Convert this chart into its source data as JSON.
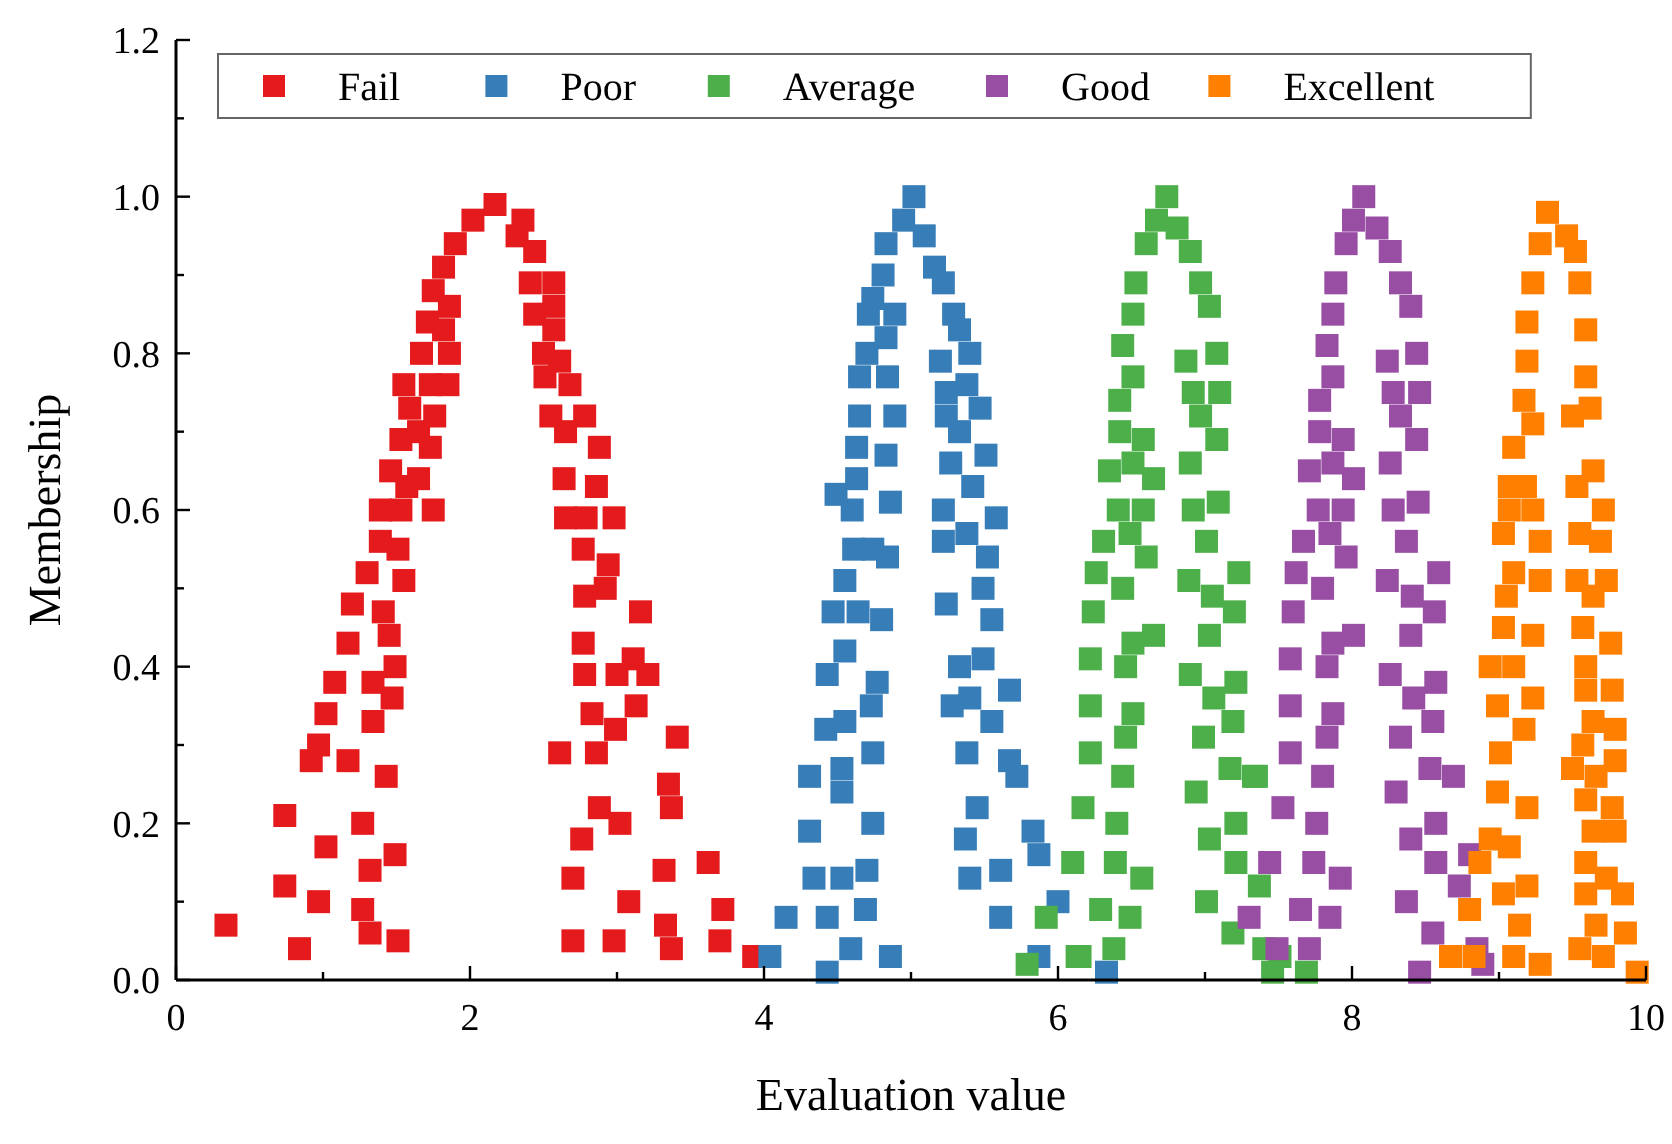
{
  "chart_data": {
    "type": "scatter",
    "xlabel": "Evaluation value",
    "ylabel": "Membership",
    "xlim": [
      0,
      10
    ],
    "ylim": [
      0,
      1.2
    ],
    "xticks": [
      0,
      {
        "value": 1,
        "label": null
      },
      2,
      {
        "value": 3,
        "label": null
      },
      4,
      {
        "value": 5,
        "label": null
      },
      6,
      {
        "value": 7,
        "label": null
      },
      8,
      {
        "value": 9,
        "label": null
      },
      10
    ],
    "yticks": [
      {
        "value": 0,
        "label": "0.0"
      },
      {
        "value": 0.1,
        "label": null
      },
      {
        "value": 0.2,
        "label": "0.2"
      },
      {
        "value": 0.3,
        "label": null
      },
      {
        "value": 0.4,
        "label": "0.4"
      },
      {
        "value": 0.5,
        "label": null
      },
      {
        "value": 0.6,
        "label": "0.6"
      },
      {
        "value": 0.7,
        "label": null
      },
      {
        "value": 0.8,
        "label": "0.8"
      },
      {
        "value": 0.9,
        "label": null
      },
      {
        "value": 1,
        "label": "1.0"
      },
      {
        "value": 1.1,
        "label": null
      },
      {
        "value": 1.2,
        "label": "1.2"
      }
    ],
    "marker": "square",
    "legend": "top",
    "grid": false,
    "series": [
      {
        "name": "Fail",
        "color": "#e41a1c",
        "x": [
          0.34,
          0.84,
          0.74,
          0.74,
          0.97,
          1.02,
          0.92,
          0.97,
          1.02,
          1.08,
          1.17,
          1.2,
          1.3,
          1.17,
          1.27,
          1.32,
          1.27,
          1.32,
          1.51,
          1.49,
          1.43,
          1.34,
          1.47,
          1.34,
          1.49,
          1.45,
          1.41,
          1.55,
          1.51,
          1.39,
          1.39,
          1.53,
          1.46,
          1.57,
          1.65,
          1.53,
          1.59,
          1.65,
          1.73,
          1.75,
          1.76,
          1.55,
          1.73,
          1.85,
          1.67,
          1.86,
          1.71,
          1.82,
          1.75,
          1.86,
          1.82,
          1.9,
          2.02,
          2.17,
          2.36,
          2.32,
          2.44,
          2.41,
          2.57,
          2.44,
          2.57,
          2.57,
          2.5,
          2.61,
          2.51,
          2.68,
          2.55,
          2.78,
          2.65,
          2.88,
          2.64,
          2.86,
          2.65,
          2.79,
          2.98,
          2.77,
          2.94,
          2.92,
          2.78,
          3.16,
          2.77,
          3.11,
          3.0,
          3.21,
          2.78,
          3.13,
          2.83,
          2.99,
          3.41,
          2.61,
          2.86,
          3.35,
          3.37,
          2.88,
          3.02,
          2.76,
          3.62,
          3.32,
          2.7,
          3.08,
          3.72,
          3.33,
          2.7,
          2.98,
          3.37,
          3.7,
          3.93
        ],
        "values": [
          0.07,
          0.04,
          0.21,
          0.12,
          0.1,
          0.17,
          0.28,
          0.3,
          0.34,
          0.38,
          0.43,
          0.48,
          0.52,
          0.28,
          0.2,
          0.14,
          0.09,
          0.06,
          0.05,
          0.16,
          0.26,
          0.33,
          0.36,
          0.38,
          0.4,
          0.44,
          0.47,
          0.51,
          0.55,
          0.56,
          0.6,
          0.6,
          0.65,
          0.63,
          0.64,
          0.69,
          0.73,
          0.7,
          0.68,
          0.6,
          0.72,
          0.76,
          0.76,
          0.76,
          0.8,
          0.8,
          0.84,
          0.83,
          0.88,
          0.86,
          0.91,
          0.94,
          0.97,
          0.99,
          0.97,
          0.95,
          0.93,
          0.89,
          0.89,
          0.85,
          0.86,
          0.83,
          0.8,
          0.79,
          0.77,
          0.76,
          0.72,
          0.72,
          0.7,
          0.68,
          0.64,
          0.63,
          0.59,
          0.59,
          0.59,
          0.55,
          0.53,
          0.5,
          0.49,
          0.47,
          0.43,
          0.41,
          0.39,
          0.39,
          0.39,
          0.35,
          0.34,
          0.32,
          0.31,
          0.29,
          0.29,
          0.25,
          0.22,
          0.22,
          0.2,
          0.18,
          0.15,
          0.14,
          0.13,
          0.1,
          0.09,
          0.07,
          0.05,
          0.05,
          0.04,
          0.05,
          0.03
        ]
      },
      {
        "name": "Poor",
        "color": "#377eb8",
        "x": [
          4.04,
          4.15,
          4.43,
          4.43,
          4.59,
          4.86,
          4.69,
          4.34,
          4.53,
          4.7,
          4.31,
          4.74,
          4.31,
          4.53,
          4.53,
          4.74,
          4.42,
          4.55,
          4.73,
          4.77,
          4.43,
          4.55,
          4.47,
          4.64,
          4.8,
          4.55,
          4.61,
          4.74,
          4.84,
          4.6,
          4.49,
          4.86,
          4.63,
          4.83,
          4.63,
          4.65,
          4.89,
          4.65,
          4.84,
          4.7,
          4.83,
          4.71,
          4.89,
          4.74,
          4.81,
          4.83,
          4.95,
          5.02,
          5.09,
          5.16,
          5.22,
          5.29,
          5.33,
          5.4,
          5.2,
          5.38,
          5.24,
          5.47,
          5.24,
          5.33,
          5.27,
          5.51,
          5.42,
          5.22,
          5.58,
          5.38,
          5.22,
          5.52,
          5.49,
          5.24,
          5.55,
          5.33,
          5.49,
          5.67,
          5.4,
          5.28,
          5.55,
          5.38,
          5.67,
          5.72,
          5.45,
          5.83,
          5.37,
          5.87,
          5.61,
          5.4,
          6.0,
          5.61,
          5.87,
          6.33
        ],
        "values": [
          0.03,
          0.08,
          0.01,
          0.08,
          0.04,
          0.03,
          0.09,
          0.13,
          0.13,
          0.14,
          0.19,
          0.2,
          0.26,
          0.24,
          0.27,
          0.29,
          0.32,
          0.33,
          0.35,
          0.38,
          0.39,
          0.42,
          0.47,
          0.47,
          0.46,
          0.51,
          0.55,
          0.55,
          0.54,
          0.6,
          0.62,
          0.61,
          0.64,
          0.67,
          0.68,
          0.72,
          0.72,
          0.77,
          0.77,
          0.8,
          0.82,
          0.85,
          0.85,
          0.87,
          0.9,
          0.94,
          0.97,
          1.0,
          0.95,
          0.91,
          0.89,
          0.85,
          0.83,
          0.8,
          0.79,
          0.76,
          0.75,
          0.73,
          0.72,
          0.7,
          0.66,
          0.67,
          0.63,
          0.6,
          0.59,
          0.57,
          0.56,
          0.54,
          0.5,
          0.48,
          0.46,
          0.4,
          0.41,
          0.37,
          0.36,
          0.35,
          0.33,
          0.29,
          0.28,
          0.26,
          0.22,
          0.19,
          0.18,
          0.16,
          0.14,
          0.13,
          0.1,
          0.08,
          0.03,
          0.01
        ]
      },
      {
        "name": "Average",
        "color": "#4daf4a",
        "x": [
          5.79,
          5.92,
          6.13,
          6.1,
          6.17,
          6.15,
          6.38,
          6.29,
          6.49,
          6.39,
          6.57,
          6.4,
          6.44,
          6.22,
          6.46,
          6.22,
          6.51,
          6.22,
          6.46,
          6.51,
          6.65,
          6.24,
          6.44,
          6.26,
          6.31,
          6.6,
          6.49,
          6.41,
          6.58,
          6.65,
          6.35,
          6.51,
          6.42,
          6.58,
          6.42,
          6.51,
          6.44,
          6.51,
          6.53,
          6.6,
          6.67,
          6.74,
          6.81,
          6.9,
          6.97,
          7.03,
          7.08,
          6.87,
          7.1,
          6.92,
          6.97,
          7.08,
          6.9,
          7.09,
          6.92,
          7.01,
          7.23,
          6.89,
          7.05,
          7.2,
          7.03,
          6.9,
          7.06,
          7.21,
          7.19,
          6.99,
          7.17,
          7.33,
          6.94,
          7.21,
          7.03,
          7.21,
          7.37,
          7.01,
          7.19,
          7.4,
          7.69,
          7.46,
          7.35,
          7.51
        ],
        "values": [
          0.02,
          0.08,
          0.03,
          0.15,
          0.22,
          0.03,
          0.04,
          0.09,
          0.08,
          0.15,
          0.13,
          0.2,
          0.26,
          0.29,
          0.31,
          0.35,
          0.34,
          0.41,
          0.4,
          0.43,
          0.44,
          0.47,
          0.5,
          0.52,
          0.56,
          0.54,
          0.57,
          0.6,
          0.6,
          0.64,
          0.65,
          0.66,
          0.7,
          0.69,
          0.74,
          0.77,
          0.81,
          0.85,
          0.89,
          0.94,
          0.97,
          1.0,
          0.96,
          0.93,
          0.89,
          0.86,
          0.8,
          0.79,
          0.75,
          0.75,
          0.72,
          0.69,
          0.66,
          0.61,
          0.6,
          0.56,
          0.52,
          0.51,
          0.49,
          0.47,
          0.44,
          0.39,
          0.36,
          0.38,
          0.33,
          0.31,
          0.27,
          0.26,
          0.24,
          0.2,
          0.18,
          0.15,
          0.12,
          0.1,
          0.06,
          0.04,
          0.01,
          0.01,
          0.26,
          0.03
        ]
      },
      {
        "name": "Good",
        "color": "#984ea3",
        "x": [
          7.49,
          7.3,
          7.44,
          7.65,
          7.71,
          7.85,
          7.74,
          7.92,
          7.53,
          7.76,
          7.8,
          7.58,
          7.83,
          7.58,
          7.87,
          7.58,
          7.83,
          7.87,
          8.01,
          7.6,
          7.8,
          7.62,
          7.67,
          7.96,
          7.85,
          7.77,
          7.94,
          8.01,
          7.71,
          7.87,
          7.78,
          7.94,
          7.78,
          7.87,
          7.83,
          7.87,
          7.89,
          7.96,
          8.01,
          8.08,
          8.17,
          8.26,
          8.33,
          8.4,
          8.44,
          8.24,
          8.46,
          8.28,
          8.33,
          8.44,
          8.26,
          8.45,
          8.28,
          8.37,
          8.59,
          8.24,
          8.41,
          8.56,
          8.4,
          8.26,
          8.42,
          8.57,
          8.55,
          8.33,
          8.53,
          8.69,
          8.3,
          8.57,
          8.4,
          8.57,
          8.8,
          8.73,
          8.37,
          8.55,
          8.46,
          8.85,
          8.89
        ],
        "values": [
          0.04,
          0.08,
          0.15,
          0.09,
          0.04,
          0.08,
          0.15,
          0.13,
          0.22,
          0.2,
          0.26,
          0.29,
          0.31,
          0.35,
          0.34,
          0.41,
          0.4,
          0.43,
          0.44,
          0.47,
          0.5,
          0.52,
          0.56,
          0.54,
          0.57,
          0.6,
          0.6,
          0.64,
          0.65,
          0.66,
          0.7,
          0.69,
          0.74,
          0.77,
          0.81,
          0.85,
          0.89,
          0.94,
          0.97,
          1.0,
          0.96,
          0.93,
          0.89,
          0.86,
          0.8,
          0.79,
          0.75,
          0.75,
          0.72,
          0.69,
          0.66,
          0.61,
          0.6,
          0.56,
          0.52,
          0.51,
          0.49,
          0.47,
          0.44,
          0.39,
          0.36,
          0.38,
          0.33,
          0.31,
          0.27,
          0.26,
          0.24,
          0.2,
          0.18,
          0.15,
          0.16,
          0.12,
          0.1,
          0.06,
          0.01,
          0.04,
          0.02
        ]
      },
      {
        "name": "Excellent",
        "color": "#ff7f00",
        "x": [
          8.67,
          8.83,
          8.8,
          9.03,
          9.19,
          9.14,
          9.1,
          9.28,
          8.87,
          8.94,
          9.07,
          8.99,
          9.19,
          9.01,
          9.17,
          8.99,
          9.23,
          8.94,
          9.1,
          9.03,
          9.23,
          9.05,
          9.28,
          9.1,
          9.03,
          9.28,
          9.07,
          9.23,
          9.07,
          9.18,
          9.1,
          9.23,
          9.17,
          9.19,
          9.19,
          9.23,
          9.28,
          9.33,
          9.46,
          9.52,
          9.55,
          9.59,
          9.59,
          9.5,
          9.62,
          9.64,
          9.53,
          9.71,
          9.55,
          9.69,
          9.53,
          9.73,
          9.64,
          9.57,
          9.76,
          9.59,
          9.59,
          9.77,
          9.64,
          9.79,
          9.57,
          9.5,
          9.66,
          9.79,
          9.59,
          9.77,
          9.64,
          9.79,
          9.59,
          9.73,
          9.59,
          9.84,
          9.66,
          9.86,
          9.55,
          9.71,
          9.94
        ],
        "values": [
          0.03,
          0.03,
          0.09,
          0.11,
          0.12,
          0.07,
          0.03,
          0.02,
          0.15,
          0.18,
          0.17,
          0.24,
          0.22,
          0.29,
          0.32,
          0.35,
          0.36,
          0.4,
          0.4,
          0.45,
          0.44,
          0.49,
          0.51,
          0.52,
          0.57,
          0.56,
          0.6,
          0.6,
          0.63,
          0.63,
          0.68,
          0.71,
          0.74,
          0.79,
          0.84,
          0.89,
          0.94,
          0.98,
          0.95,
          0.93,
          0.89,
          0.83,
          0.77,
          0.72,
          0.73,
          0.65,
          0.63,
          0.6,
          0.57,
          0.56,
          0.51,
          0.51,
          0.49,
          0.45,
          0.43,
          0.4,
          0.37,
          0.37,
          0.33,
          0.32,
          0.3,
          0.27,
          0.26,
          0.28,
          0.23,
          0.22,
          0.19,
          0.19,
          0.15,
          0.13,
          0.11,
          0.11,
          0.07,
          0.06,
          0.04,
          0.03,
          0.01
        ]
      }
    ]
  }
}
